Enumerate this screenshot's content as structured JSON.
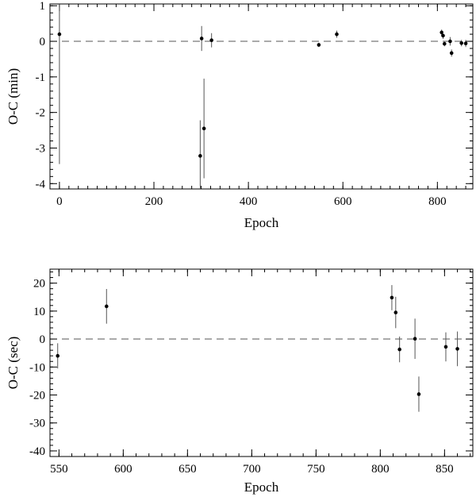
{
  "chart_data": [
    {
      "type": "scatter",
      "xlabel": "Epoch",
      "ylabel": "O-C (min)",
      "xlim": [
        -20,
        875
      ],
      "ylim": [
        -4.15,
        1.05
      ],
      "x_ticks": [
        0,
        200,
        400,
        600,
        800
      ],
      "x_minor_step": 20,
      "y_ticks": [
        1,
        0,
        -1,
        -2,
        -3,
        -4
      ],
      "y_minor_step": 0.2,
      "zero_line": true,
      "grid": false,
      "points": [
        {
          "x": 0,
          "y": 0.2,
          "err": 3.65
        },
        {
          "x": 298,
          "y": -3.22,
          "err": 1.0
        },
        {
          "x": 301,
          "y": 0.08,
          "err": 0.35
        },
        {
          "x": 306,
          "y": -2.45,
          "err": 1.4
        },
        {
          "x": 322,
          "y": 0.03,
          "err": 0.2
        },
        {
          "x": 549,
          "y": -0.1,
          "err": 0.06
        },
        {
          "x": 587,
          "y": 0.2,
          "err": 0.1
        },
        {
          "x": 809,
          "y": 0.25,
          "err": 0.08
        },
        {
          "x": 812,
          "y": 0.16,
          "err": 0.09
        },
        {
          "x": 815,
          "y": -0.07,
          "err": 0.07
        },
        {
          "x": 827,
          "y": 0.0,
          "err": 0.12
        },
        {
          "x": 830,
          "y": -0.33,
          "err": 0.1
        },
        {
          "x": 851,
          "y": -0.05,
          "err": 0.09
        },
        {
          "x": 860,
          "y": -0.06,
          "err": 0.1
        }
      ]
    },
    {
      "type": "scatter",
      "xlabel": "Epoch",
      "ylabel": "O-C (sec)",
      "xlim": [
        543,
        872
      ],
      "ylim": [
        -42,
        25
      ],
      "x_ticks": [
        550,
        600,
        650,
        700,
        750,
        800,
        850
      ],
      "x_minor_step": 10,
      "y_ticks": [
        20,
        10,
        0,
        -10,
        -20,
        -30,
        -40
      ],
      "y_minor_step": 2,
      "zero_line": true,
      "grid": false,
      "points": [
        {
          "x": 549,
          "y": -6,
          "err": 4.5
        },
        {
          "x": 587,
          "y": 11.7,
          "err": 6.2
        },
        {
          "x": 809,
          "y": 14.8,
          "err": 4.5
        },
        {
          "x": 812,
          "y": 9.5,
          "err": 5.6
        },
        {
          "x": 815,
          "y": -3.7,
          "err": 4.6
        },
        {
          "x": 827,
          "y": 0.1,
          "err": 7.2
        },
        {
          "x": 830,
          "y": -19.7,
          "err": 6.3
        },
        {
          "x": 851,
          "y": -2.8,
          "err": 5.2
        },
        {
          "x": 860,
          "y": -3.5,
          "err": 6.2
        }
      ]
    }
  ]
}
